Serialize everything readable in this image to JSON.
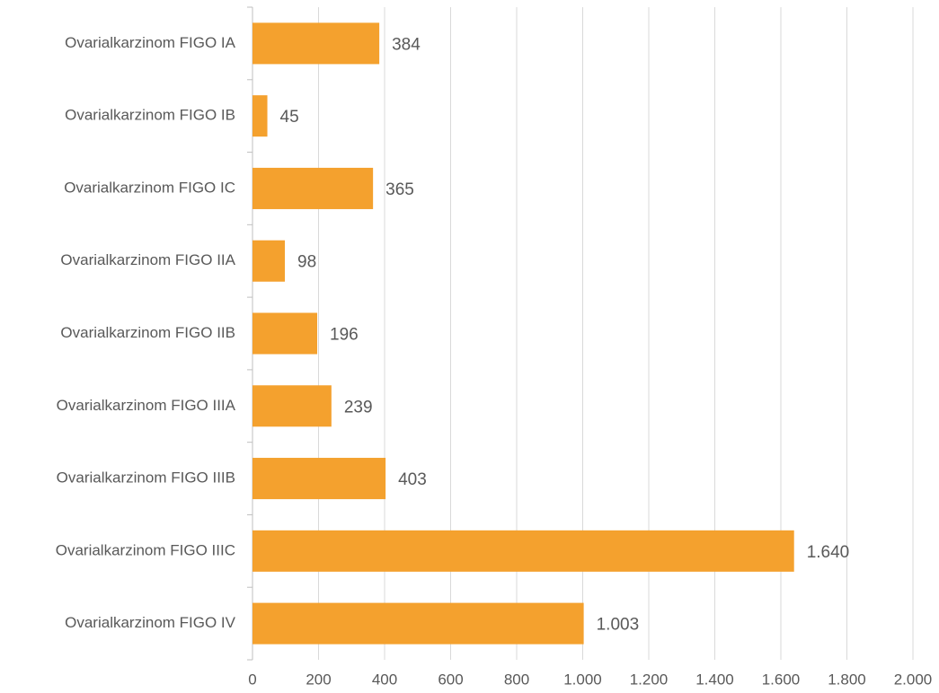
{
  "chart_data": {
    "type": "hbar",
    "categories": [
      "Ovarialkarzinom FIGO IA",
      "Ovarialkarzinom FIGO IB",
      "Ovarialkarzinom FIGO IC",
      "Ovarialkarzinom FIGO IIA",
      "Ovarialkarzinom FIGO IIB",
      "Ovarialkarzinom FIGO IIIA",
      "Ovarialkarzinom FIGO IIIB",
      "Ovarialkarzinom FIGO IIIC",
      "Ovarialkarzinom FIGO IV"
    ],
    "values": [
      384,
      45,
      365,
      98,
      196,
      239,
      403,
      1640,
      1003
    ],
    "value_labels": [
      "384",
      "45",
      "365",
      "98",
      "196",
      "239",
      "403",
      "1.640",
      "1.003"
    ],
    "color": "#f4a12e",
    "xlim": [
      0,
      2000
    ],
    "xticks": [
      0,
      200,
      400,
      600,
      800,
      {
        "value": 1000,
        "label": "1.000"
      },
      {
        "value": 1200,
        "label": "1.200"
      },
      {
        "value": 1400,
        "label": "1.400"
      },
      {
        "value": 1600,
        "label": "1.600"
      },
      {
        "value": 1800,
        "label": "1.800"
      },
      {
        "value": 2000,
        "label": "2.000"
      }
    ],
    "grid": true
  }
}
